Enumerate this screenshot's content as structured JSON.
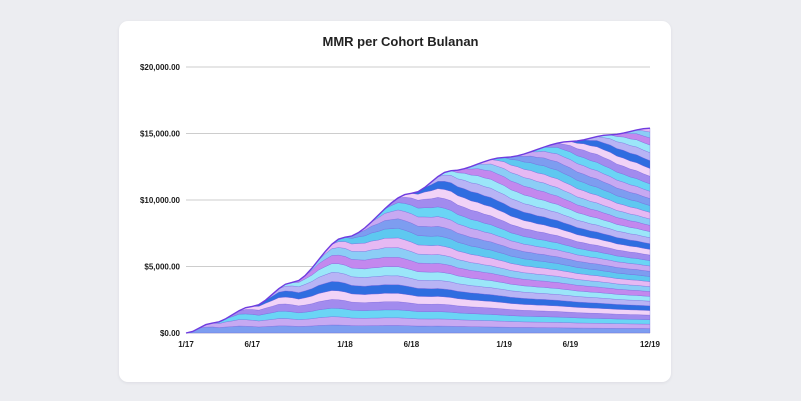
{
  "chart_data": {
    "type": "area",
    "stacked": true,
    "title": "MMR per Cohort Bulanan",
    "xlabel": "",
    "ylabel": "",
    "x_range": [
      "2017-01",
      "2019-12"
    ],
    "x_ticks": [
      "1/17",
      "6/17",
      "1/18",
      "6/18",
      "1/19",
      "6/19",
      "12/19"
    ],
    "y_ticks": [
      "$0.00",
      "$5,000.00",
      "$10,000.00",
      "$15,000.00",
      "$20,000.00"
    ],
    "ylim": [
      0,
      20000
    ],
    "grid": "horizontal",
    "cohort_count": 36,
    "total_mrr": [
      {
        "x": "2017-01",
        "y": 0
      },
      {
        "x": "2017-03",
        "y": 750
      },
      {
        "x": "2017-06",
        "y": 2000
      },
      {
        "x": "2017-09",
        "y": 3800
      },
      {
        "x": "2018-01",
        "y": 7200
      },
      {
        "x": "2018-06",
        "y": 10500
      },
      {
        "x": "2018-09",
        "y": 12200
      },
      {
        "x": "2019-01",
        "y": 13200
      },
      {
        "x": "2019-06",
        "y": 14400
      },
      {
        "x": "2019-09",
        "y": 14900
      },
      {
        "x": "2019-12",
        "y": 15400
      }
    ],
    "colors": [
      "#7d9df0",
      "#c7a9f2",
      "#6ad5f5",
      "#a28bee",
      "#f1d3f7",
      "#2f6de0",
      "#b8b4f5",
      "#9be6f9",
      "#c388ee",
      "#8ccdf6",
      "#e6b9f3",
      "#5ec8f0"
    ]
  }
}
